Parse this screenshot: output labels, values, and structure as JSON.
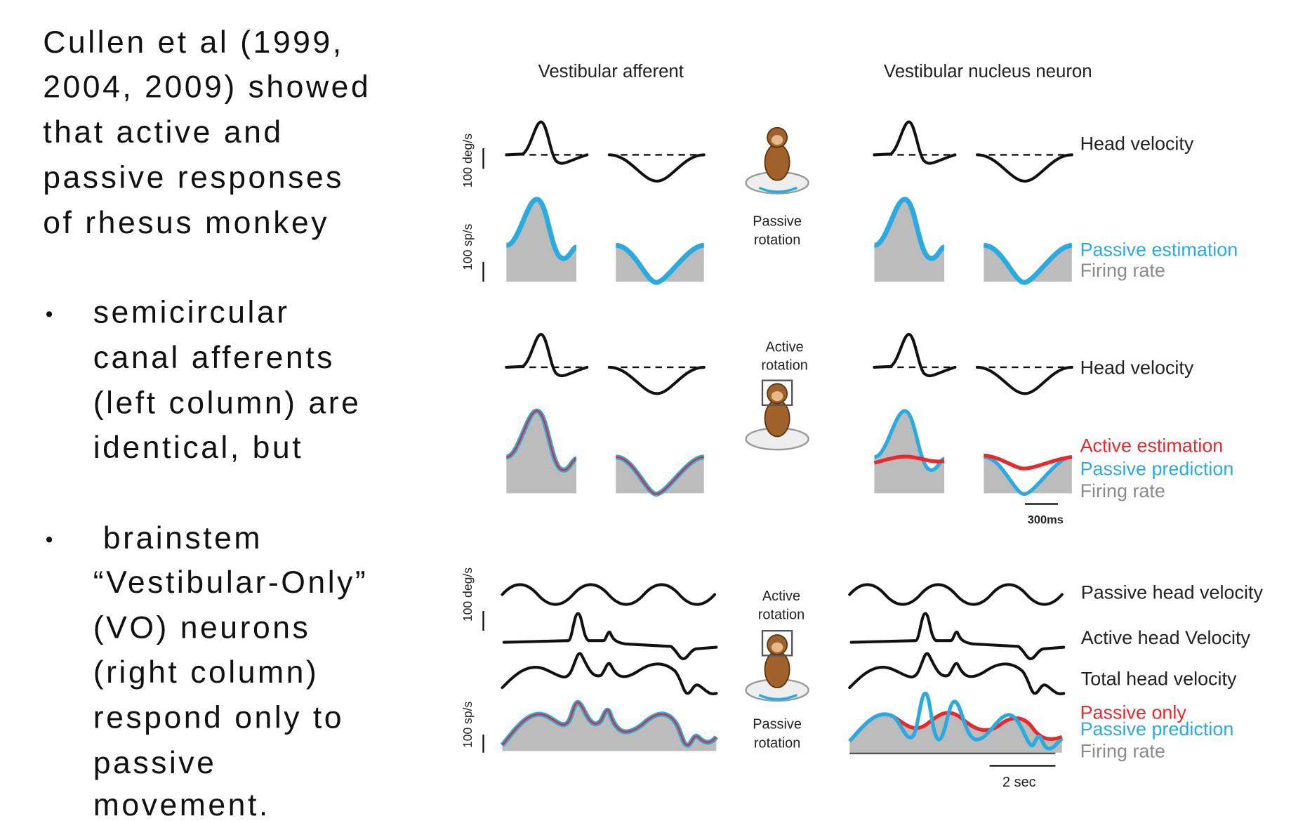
{
  "slide": {
    "intro": {
      "lines": [
        "Cullen et al (1999,",
        "2004, 2009) showed",
        "that active and",
        "passive responses",
        "of rhesus monkey"
      ]
    },
    "bullets": [
      {
        "lines": [
          "semicircular",
          "canal afferents",
          "(left column) are",
          "identical, but"
        ]
      },
      {
        "lines": [
          "brainstem",
          "“Vestibular-Only”",
          "(VO) neurons",
          "(right column)",
          "respond only to",
          "passive",
          "movement."
        ]
      }
    ]
  },
  "figure": {
    "column_titles": [
      "Vestibular afferent",
      "Vestibular nucleus neuron"
    ],
    "panels": [
      {
        "scale_labels": [
          "100 deg/s",
          "100 sp/s"
        ],
        "center_labels": [
          [
            "Passive",
            "rotation"
          ]
        ],
        "trace_labels": [
          "Head velocity",
          "Passive estimation",
          "Firing rate"
        ]
      },
      {
        "center_labels": [
          [
            "Active",
            "rotation"
          ]
        ],
        "trace_labels": [
          "Head velocity",
          "Active estimation",
          "Passive prediction",
          "Firing rate"
        ],
        "time_scale": "300ms"
      },
      {
        "scale_labels": [
          "100 deg/s",
          "100 sp/s"
        ],
        "center_labels": [
          [
            "Active",
            "rotation"
          ],
          [
            "Passive",
            "rotation"
          ]
        ],
        "trace_labels": [
          "Passive head velocity",
          "Active head Velocity",
          "Total head velocity",
          "Passive only",
          "Passive prediction",
          "Firing rate"
        ],
        "time_scale": "2 sec"
      }
    ]
  }
}
